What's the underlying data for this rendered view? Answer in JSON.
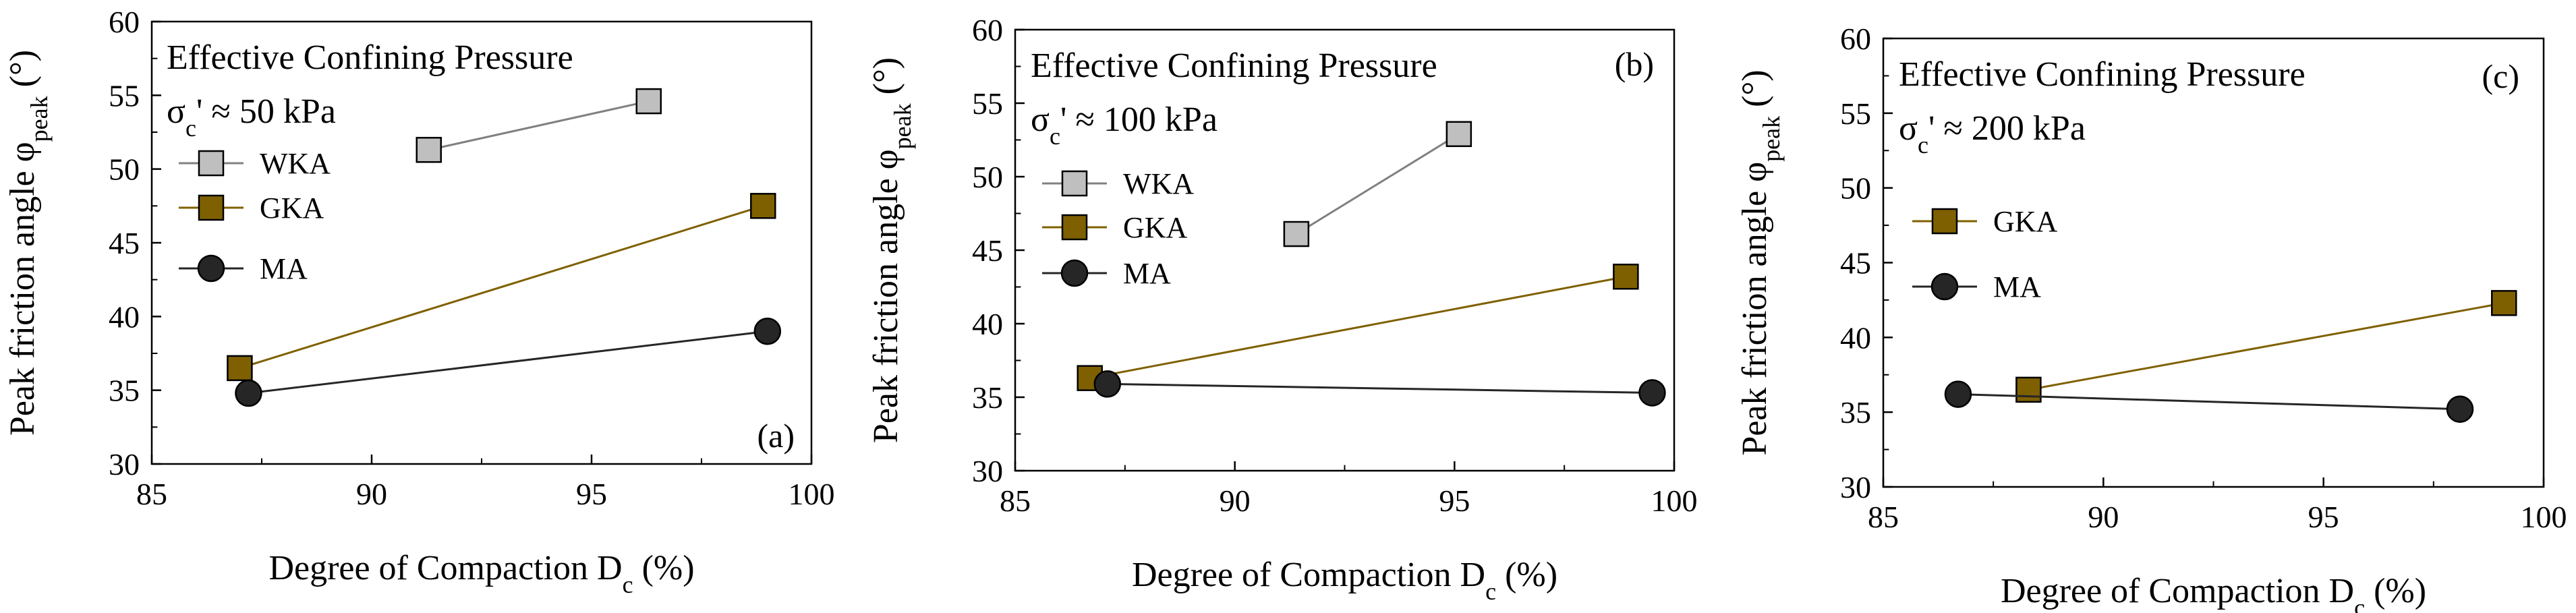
{
  "colors": {
    "WKA": "#bfbfbf",
    "GKA": "#7f6000",
    "MA": "#262626",
    "WKA_line": "#808080",
    "GKA_line": "#7f6000",
    "MA_line": "#262626"
  },
  "chart_data": [
    {
      "type": "line",
      "panel_label": "(a)",
      "annotation_title": "Effective Confining Pressure",
      "annotation_symbol": "σ",
      "annotation_sub": "c",
      "annotation_value": "' ≈ 50 kPa",
      "xlabel_main": "Degree of Compaction D",
      "xlabel_sub": "c",
      "xlabel_unit": " (%)",
      "ylabel_main": "Peak friction angle φ",
      "ylabel_sub": "peak",
      "ylabel_unit": " (°)",
      "xlim": [
        85,
        100
      ],
      "ylim": [
        30,
        60
      ],
      "xticks": [
        "85",
        "90",
        "95",
        "100"
      ],
      "yticks": [
        "30",
        "35",
        "40",
        "45",
        "50",
        "55",
        "60"
      ],
      "legend": [
        "WKA",
        "GKA",
        "MA"
      ],
      "series": [
        {
          "name": "WKA",
          "marker": "square",
          "x": [
            91.3,
            96.3
          ],
          "y": [
            51.3,
            54.6
          ]
        },
        {
          "name": "GKA",
          "marker": "square",
          "x": [
            87.0,
            98.9
          ],
          "y": [
            36.5,
            47.5
          ]
        },
        {
          "name": "MA",
          "marker": "circle",
          "x": [
            87.2,
            99.0
          ],
          "y": [
            34.8,
            39.0
          ]
        }
      ]
    },
    {
      "type": "line",
      "panel_label": "(b)",
      "annotation_title": "Effective Confining Pressure",
      "annotation_symbol": "σ",
      "annotation_sub": "c",
      "annotation_value": "' ≈ 100 kPa",
      "xlabel_main": "Degree of Compaction D",
      "xlabel_sub": "c",
      "xlabel_unit": " (%)",
      "ylabel_main": "Peak friction angle φ",
      "ylabel_sub": "peak",
      "ylabel_unit": " (°)",
      "xlim": [
        85,
        100
      ],
      "ylim": [
        30,
        60
      ],
      "xticks": [
        "85",
        "90",
        "95",
        "100"
      ],
      "yticks": [
        "30",
        "35",
        "40",
        "45",
        "50",
        "55",
        "60"
      ],
      "legend": [
        "WKA",
        "GKA",
        "MA"
      ],
      "series": [
        {
          "name": "WKA",
          "marker": "square",
          "x": [
            91.4,
            95.1
          ],
          "y": [
            46.1,
            52.9
          ]
        },
        {
          "name": "GKA",
          "marker": "square",
          "x": [
            86.7,
            98.9
          ],
          "y": [
            36.3,
            43.2
          ]
        },
        {
          "name": "MA",
          "marker": "circle",
          "x": [
            87.1,
            99.5
          ],
          "y": [
            35.9,
            35.3
          ]
        }
      ]
    },
    {
      "type": "line",
      "panel_label": "(c)",
      "annotation_title": "Effective Confining Pressure",
      "annotation_symbol": "σ",
      "annotation_sub": "c",
      "annotation_value": "' ≈ 200 kPa",
      "xlabel_main": "Degree of Compaction D",
      "xlabel_sub": "c",
      "xlabel_unit": " (%)",
      "ylabel_main": "Peak friction angle φ",
      "ylabel_sub": "peak",
      "ylabel_unit": " (°)",
      "xlim": [
        85,
        100
      ],
      "ylim": [
        30,
        60
      ],
      "xticks": [
        "85",
        "90",
        "95",
        "100"
      ],
      "yticks": [
        "30",
        "35",
        "40",
        "45",
        "50",
        "55",
        "60"
      ],
      "legend": [
        "GKA",
        "MA"
      ],
      "series": [
        {
          "name": "GKA",
          "marker": "square",
          "x": [
            88.3,
            99.1
          ],
          "y": [
            36.5,
            42.3
          ]
        },
        {
          "name": "MA",
          "marker": "circle",
          "x": [
            86.7,
            98.1
          ],
          "y": [
            36.2,
            35.2
          ]
        }
      ]
    }
  ]
}
